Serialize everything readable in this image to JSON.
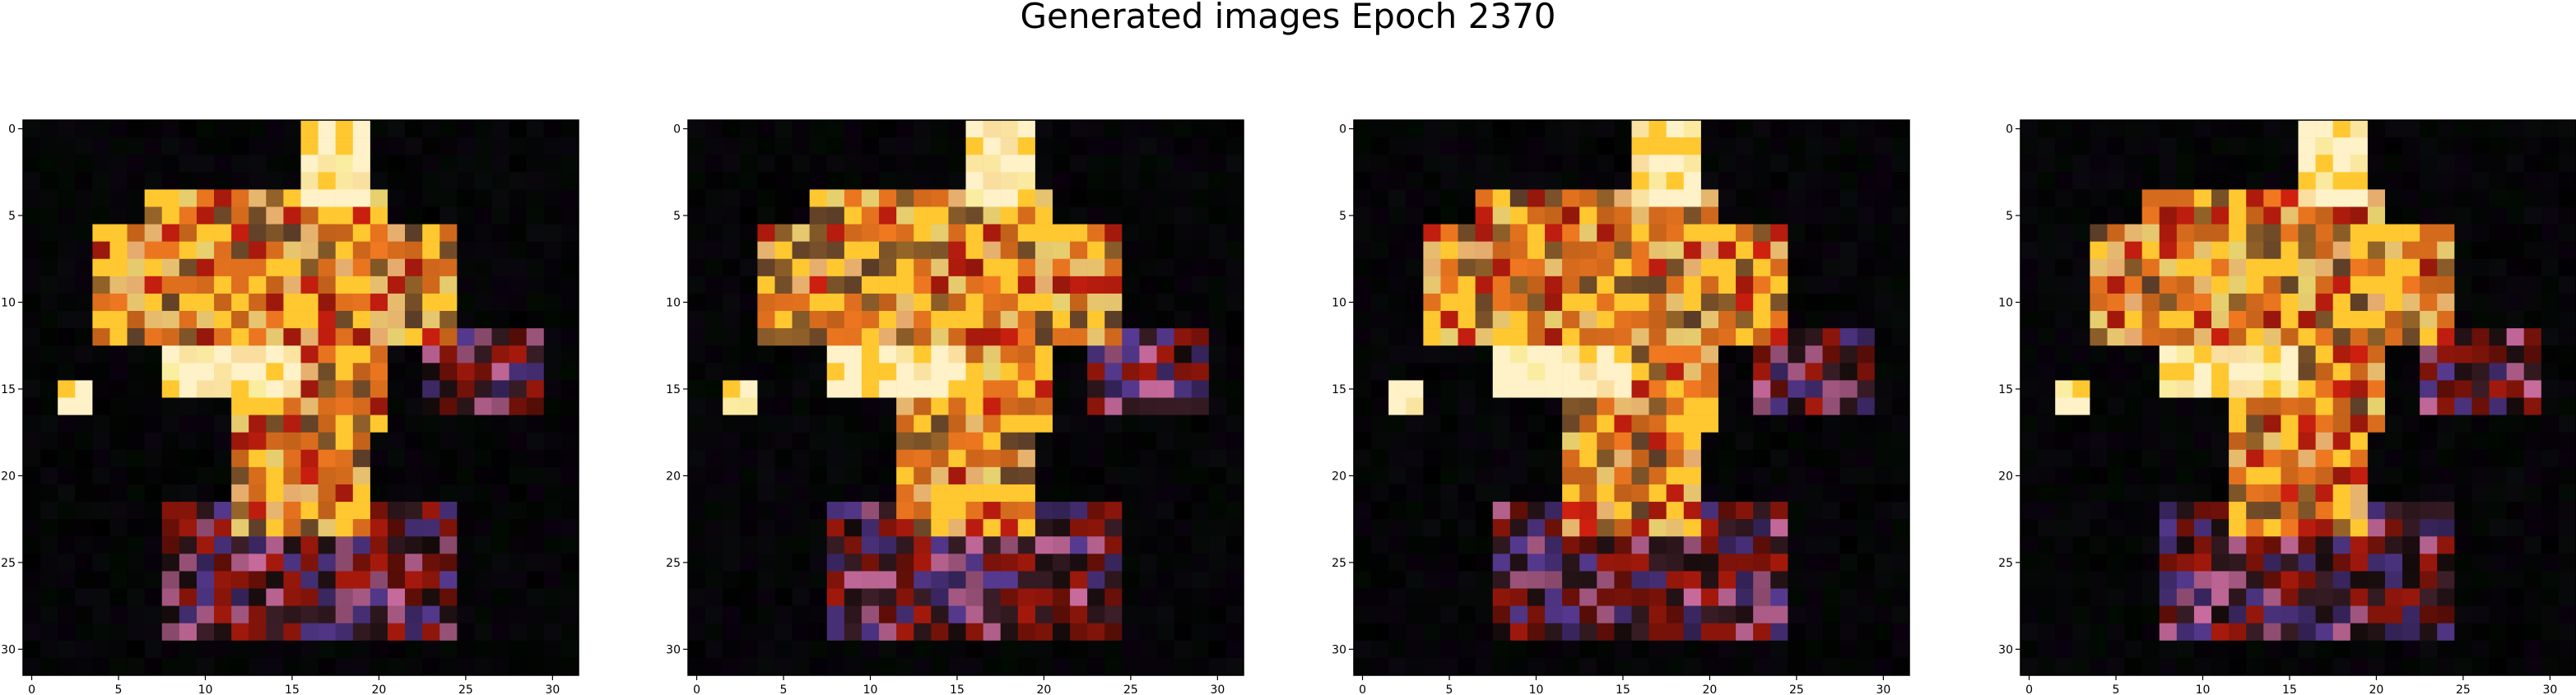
{
  "figure": {
    "title": "Generated images Epoch 2370"
  },
  "chart_data": [
    {
      "type": "heatmap",
      "title": "",
      "xlabel": "",
      "ylabel": "",
      "xlim": [
        -0.5,
        31.5
      ],
      "ylim": [
        31.5,
        -0.5
      ],
      "x_ticks": [
        "0",
        "5",
        "10",
        "15",
        "20",
        "25",
        "30"
      ],
      "y_ticks": [
        "0",
        "5",
        "10",
        "15",
        "20",
        "25",
        "30"
      ],
      "variant": 0
    },
    {
      "type": "heatmap",
      "title": "",
      "xlabel": "",
      "ylabel": "",
      "xlim": [
        -0.5,
        31.5
      ],
      "ylim": [
        31.5,
        -0.5
      ],
      "x_ticks": [
        "0",
        "5",
        "10",
        "15",
        "20",
        "25",
        "30"
      ],
      "y_ticks": [
        "0",
        "5",
        "10",
        "15",
        "20",
        "25",
        "30"
      ],
      "variant": 1
    },
    {
      "type": "heatmap",
      "title": "",
      "xlabel": "",
      "ylabel": "",
      "xlim": [
        -0.5,
        31.5
      ],
      "ylim": [
        31.5,
        -0.5
      ],
      "x_ticks": [
        "0",
        "5",
        "10",
        "15",
        "20",
        "25",
        "30"
      ],
      "y_ticks": [
        "0",
        "5",
        "10",
        "15",
        "20",
        "25",
        "30"
      ],
      "variant": 2
    },
    {
      "type": "heatmap",
      "title": "",
      "xlabel": "",
      "ylabel": "",
      "xlim": [
        -0.5,
        31.5
      ],
      "ylim": [
        31.5,
        -0.5
      ],
      "x_ticks": [
        "0",
        "5",
        "10",
        "15",
        "20",
        "25",
        "30"
      ],
      "y_ticks": [
        "0",
        "5",
        "10",
        "15",
        "20",
        "25",
        "30"
      ],
      "variant": 3
    }
  ],
  "colors": {
    "background": "#000000",
    "bright": "#fff2c8",
    "yellow": "#ffc830",
    "orange": "#f07820",
    "red": "#d02010",
    "pink": "#e078b0",
    "purple": "#6040a0"
  }
}
